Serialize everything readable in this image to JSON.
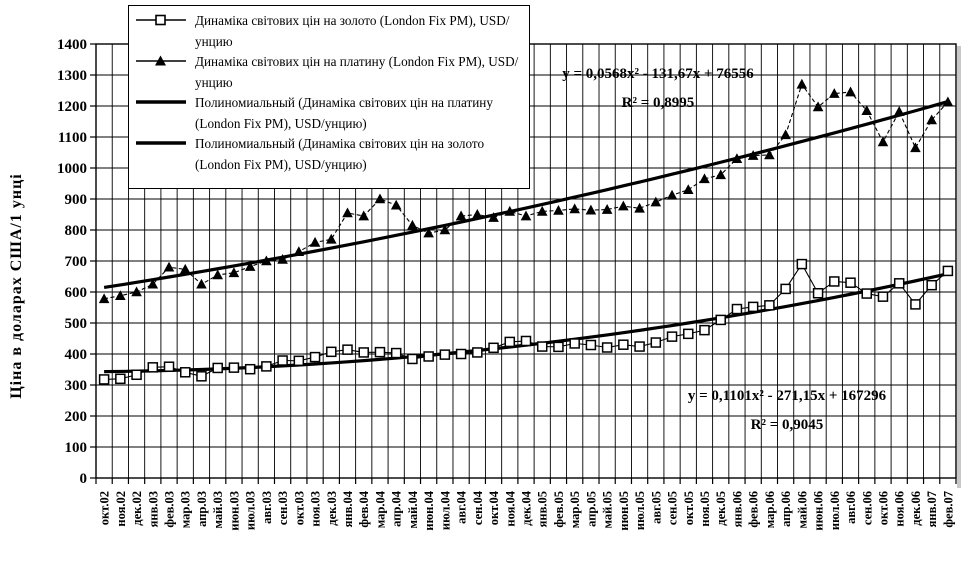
{
  "colors": {
    "foreground": "#000000",
    "background": "#ffffff",
    "grid": "#000000"
  },
  "y_axis_title": "Ціна в доларах США/1 унці",
  "legend": {
    "items": [
      {
        "marker": "open-square",
        "label": "Динаміка світових цін на золото (London Fix PM), USD/унцию"
      },
      {
        "marker": "filled-triangle",
        "label": "Динаміка світових цін на платину (London Fix PM), USD/унцию"
      },
      {
        "marker": "thick-line",
        "label": "Полиномиальный (Динаміка світових цін на платину (London Fix PM), USD/унцию)"
      },
      {
        "marker": "thick-line",
        "label": "Полиномиальный (Динаміка світових цін на золото (London Fix PM), USD/унцию)"
      }
    ]
  },
  "annotations": {
    "platinum_equation": "y = 0,0568x² - 131,67x + 76556",
    "platinum_r2": "R² = 0,8995",
    "gold_equation": "y = 0,1101x² - 271,15x + 167296",
    "gold_r2": "R² = 0,9045"
  },
  "chart_data": {
    "type": "line",
    "title": "",
    "xlabel": "",
    "ylabel": "Ціна в доларах США/1 унці",
    "ylim": [
      0,
      1400
    ],
    "y_step": 100,
    "grid": true,
    "legend_position": "top-left",
    "categories": [
      "окт.02",
      "ноя.02",
      "дек.02",
      "янв.03",
      "фев.03",
      "мар.03",
      "апр.03",
      "май.03",
      "июн.03",
      "июл.03",
      "авг.03",
      "сен.03",
      "окт.03",
      "ноя.03",
      "дек.03",
      "янв.04",
      "фев.04",
      "мар.04",
      "апр.04",
      "май.04",
      "июн.04",
      "июл.04",
      "авг.04",
      "сен.04",
      "окт.04",
      "ноя.04",
      "дек.04",
      "янв.05",
      "фев.05",
      "мар.05",
      "апр.05",
      "май.05",
      "июн.05",
      "июл.05",
      "авг.05",
      "сен.05",
      "окт.05",
      "ноя.05",
      "дек.05",
      "янв.06",
      "фев.06",
      "мар.06",
      "апр.06",
      "май.06",
      "июн.06",
      "июл.06",
      "авг.06",
      "сен.06",
      "окт.06",
      "ноя.06",
      "дек.06",
      "янв.07",
      "фев.07"
    ],
    "series": [
      {
        "name": "Динаміка світових цін на золото (London Fix PM), USD/унцию",
        "marker": "open-square",
        "line": "thin-solid",
        "values": [
          318,
          320,
          333,
          357,
          359,
          341,
          328,
          355,
          356,
          351,
          360,
          379,
          378,
          390,
          407,
          414,
          405,
          406,
          403,
          384,
          392,
          398,
          400,
          405,
          420,
          439,
          442,
          424,
          423,
          434,
          429,
          421,
          430,
          424,
          437,
          456,
          465,
          477,
          510,
          545,
          552,
          557,
          610,
          690,
          596,
          634,
          630,
          595,
          585,
          628,
          560,
          622,
          668
        ]
      },
      {
        "name": "Динаміка світових цін на платину (London Fix PM), USD/унцию",
        "marker": "filled-triangle",
        "line": "thin-dashed",
        "values": [
          578,
          588,
          600,
          625,
          680,
          673,
          625,
          655,
          662,
          682,
          700,
          705,
          730,
          760,
          770,
          855,
          845,
          900,
          880,
          815,
          790,
          800,
          845,
          850,
          840,
          860,
          845,
          860,
          863,
          868,
          864,
          866,
          877,
          870,
          890,
          912,
          930,
          965,
          978,
          1030,
          1040,
          1042,
          1107,
          1270,
          1197,
          1240,
          1245,
          1185,
          1084,
          1182,
          1065,
          1155,
          1213
        ]
      },
      {
        "name": "Полиномиальный (Динаміка світових цін на платину (London Fix PM), USD/унцию)",
        "type": "polynomial-trend",
        "degree": 2,
        "fit_of": 1,
        "equation": "y = 0,0568x² - 131,67x + 76556",
        "r2": "0,8995"
      },
      {
        "name": "Полиномиальный (Динаміка світових цін на золото (London Fix PM), USD/унцию)",
        "type": "polynomial-trend",
        "degree": 2,
        "fit_of": 0,
        "equation": "y = 0,1101x² - 271,15x + 167296",
        "r2": "0,9045"
      }
    ]
  }
}
